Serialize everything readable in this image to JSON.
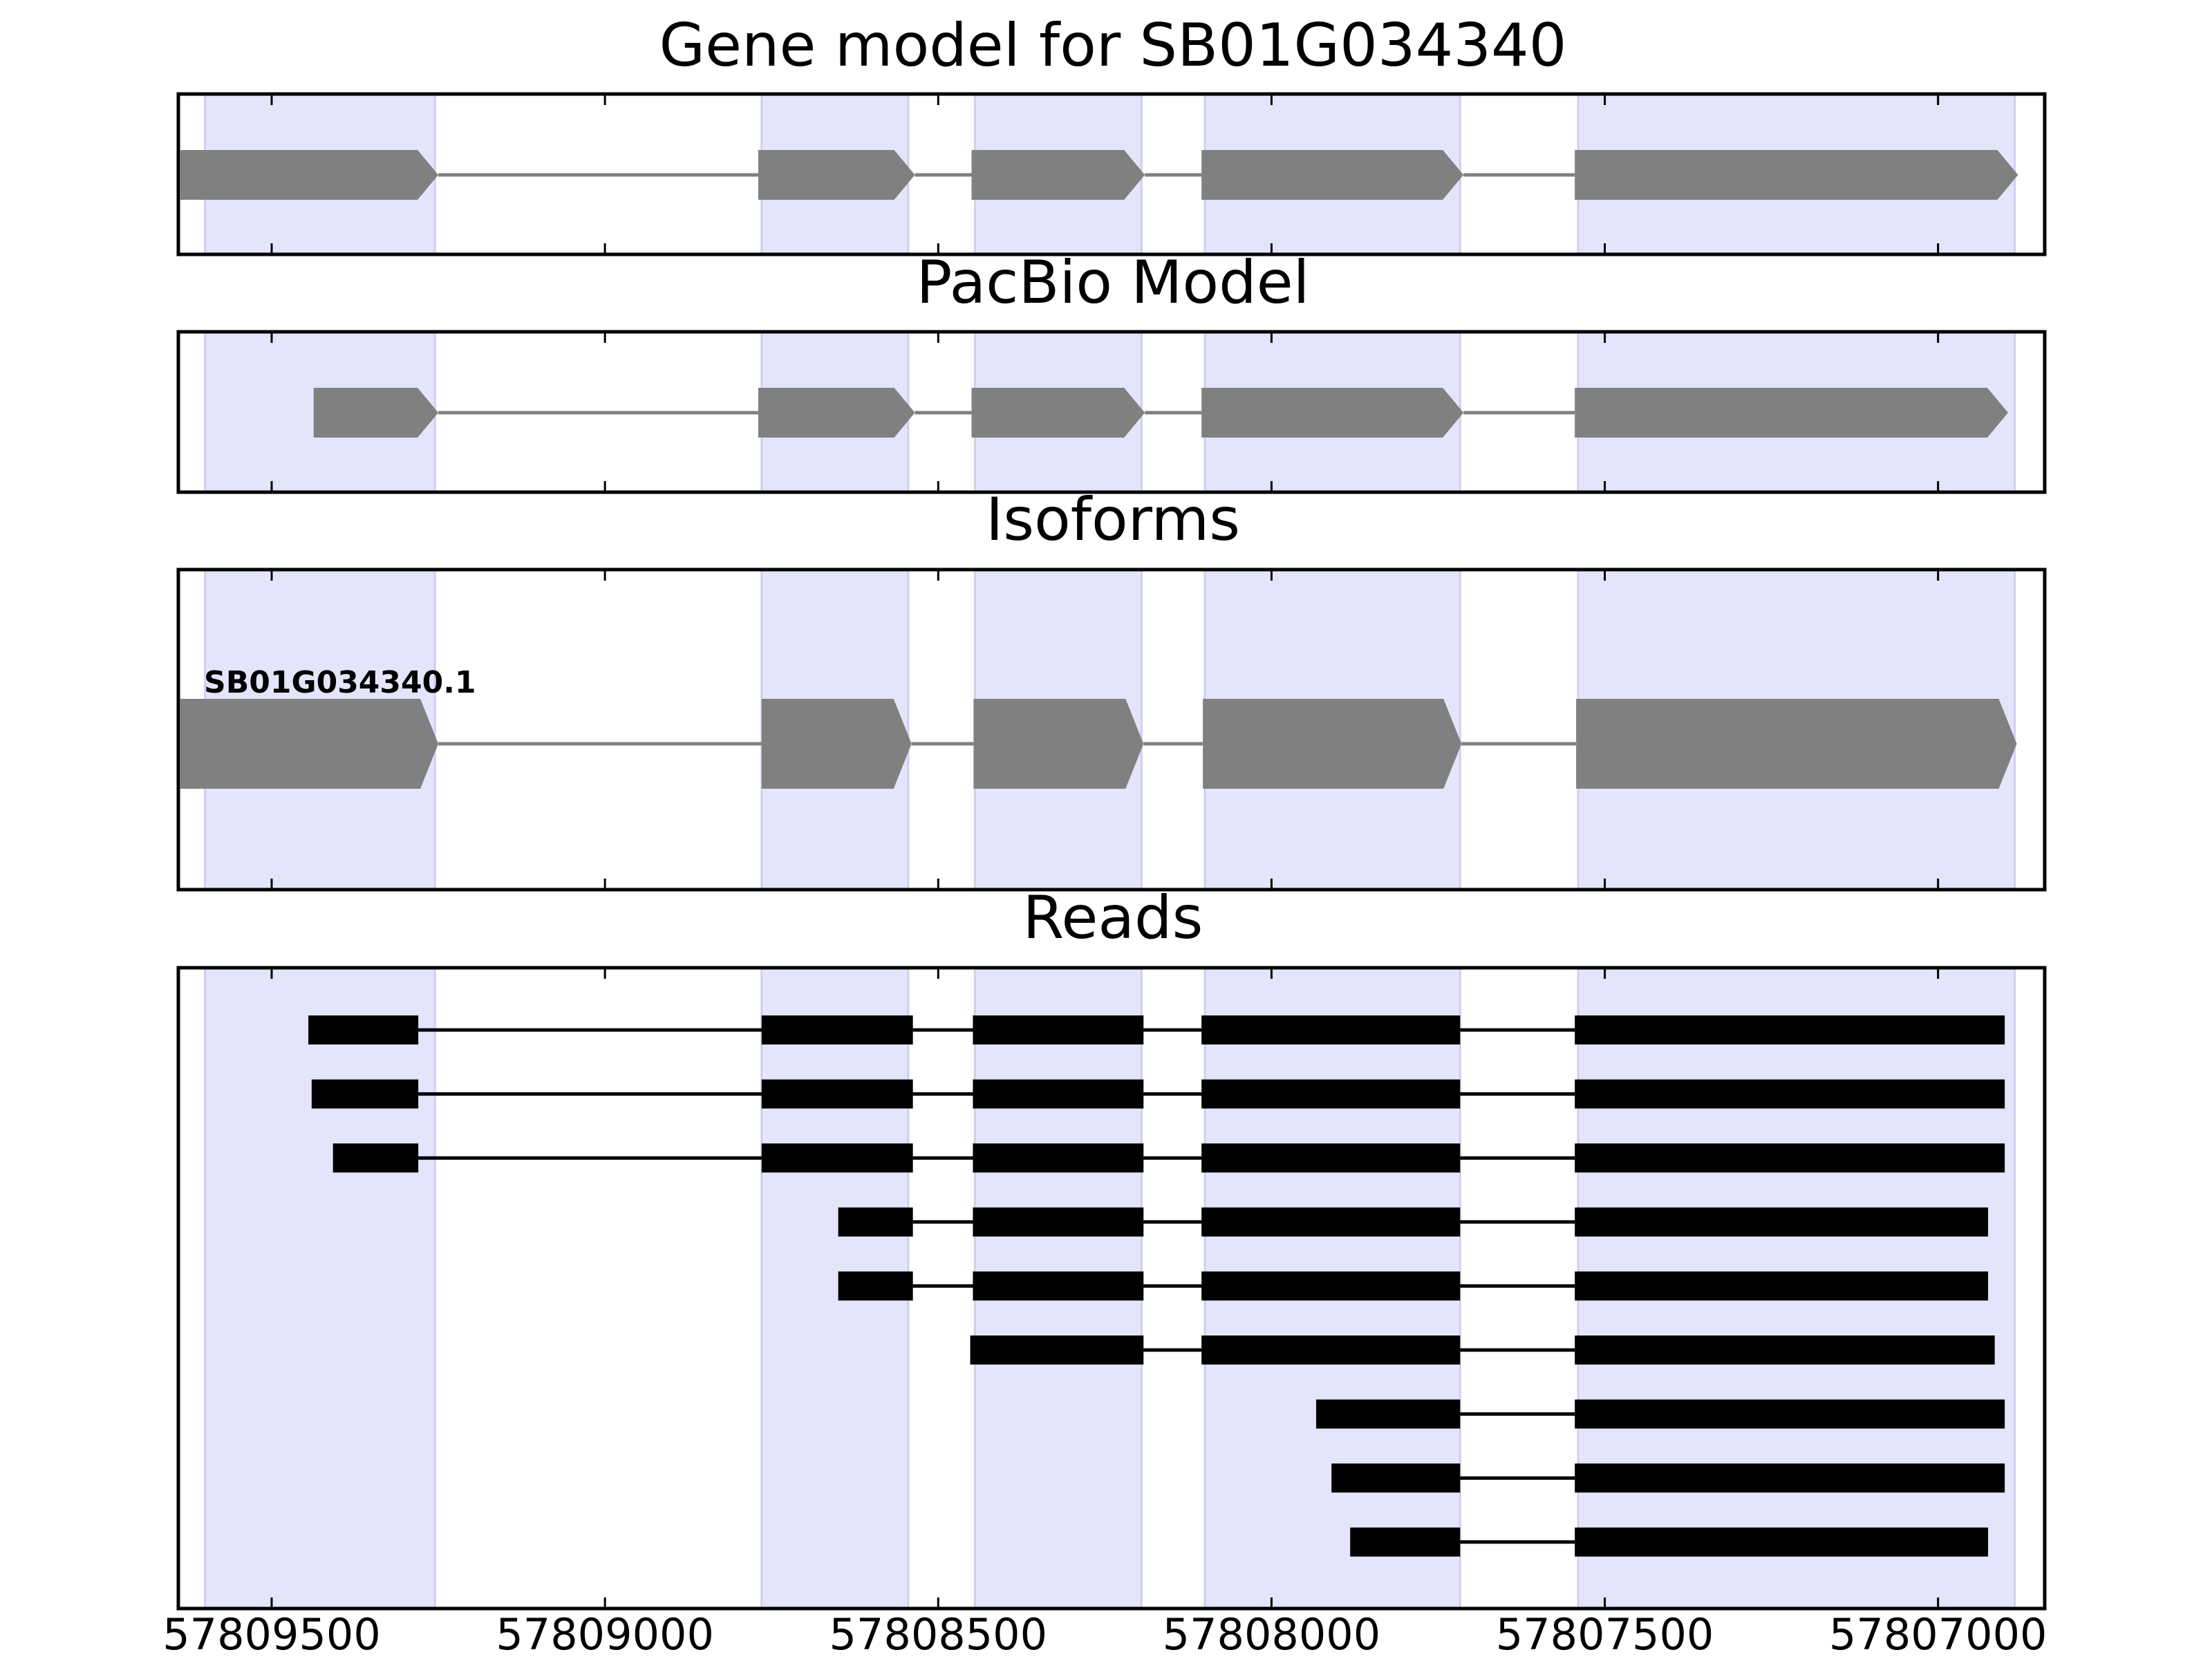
{
  "chart_data": {
    "type": "gene-structure",
    "direction": "reverse-strand",
    "x_axis": {
      "reversed": true,
      "xlim": [
        57809640,
        57806840
      ],
      "ticks": [
        57809500,
        57809000,
        57808500,
        57808000,
        57807500,
        57807000
      ],
      "tick_labels": [
        "57809500",
        "57809000",
        "57808500",
        "57808000",
        "57807500",
        "57807000"
      ]
    },
    "shaded_exon_regions": [
      [
        57809600,
        57809255
      ],
      [
        57808765,
        57808545
      ],
      [
        57808445,
        57808195
      ],
      [
        57808100,
        57807717
      ],
      [
        57807540,
        57806885
      ]
    ],
    "panels": [
      {
        "title": "Gene model for SB01G034340",
        "features": [
          {
            "label": "",
            "exons": [
              [
                57809637,
                57809250
              ],
              [
                57808770,
                57808535
              ],
              [
                57808450,
                57808190
              ],
              [
                57808105,
                57807712
              ],
              [
                57807545,
                57806880
              ]
            ]
          }
        ]
      },
      {
        "title": "PacBio Model",
        "features": [
          {
            "label": "",
            "exons": [
              [
                57809437,
                57809250
              ],
              [
                57808770,
                57808535
              ],
              [
                57808450,
                57808190
              ],
              [
                57808105,
                57807712
              ],
              [
                57807545,
                57806895
              ]
            ]
          }
        ]
      },
      {
        "title": "Isoforms",
        "features": [
          {
            "label": "SB01G034340.1",
            "exons": [
              [
                57809637,
                57809250
              ],
              [
                57808765,
                57808540
              ],
              [
                57808447,
                57808192
              ],
              [
                57808103,
                57807715
              ],
              [
                57807543,
                57806882
              ]
            ]
          }
        ]
      },
      {
        "title": "Reads",
        "reads": [
          [
            [
              57809445,
              57809280
            ],
            [
              57808765,
              57808538
            ],
            [
              57808448,
              57808192
            ],
            [
              57808105,
              57807717
            ],
            [
              57807545,
              57806900
            ]
          ],
          [
            [
              57809440,
              57809280
            ],
            [
              57808765,
              57808538
            ],
            [
              57808448,
              57808192
            ],
            [
              57808105,
              57807717
            ],
            [
              57807545,
              57806900
            ]
          ],
          [
            [
              57809408,
              57809280
            ],
            [
              57808765,
              57808538
            ],
            [
              57808448,
              57808192
            ],
            [
              57808105,
              57807717
            ],
            [
              57807545,
              57806900
            ]
          ],
          [
            [
              57808650,
              57808538
            ],
            [
              57808448,
              57808192
            ],
            [
              57808105,
              57807717
            ],
            [
              57807545,
              57806925
            ]
          ],
          [
            [
              57808650,
              57808538
            ],
            [
              57808448,
              57808192
            ],
            [
              57808105,
              57807717
            ],
            [
              57807545,
              57806925
            ]
          ],
          [
            [
              57808452,
              57808192
            ],
            [
              57808105,
              57807717
            ],
            [
              57807545,
              57806915
            ]
          ],
          [
            [
              57807933,
              57807717
            ],
            [
              57807545,
              57806900
            ]
          ],
          [
            [
              57807910,
              57807717
            ],
            [
              57807545,
              57806900
            ]
          ],
          [
            [
              57807882,
              57807717
            ],
            [
              57807545,
              57806925
            ]
          ]
        ]
      }
    ],
    "colors": {
      "shade": "#e4e4fb",
      "shade_edge": "#cfcff2",
      "model_exon": "#808080",
      "model_intron": "#808080",
      "read": "#000000",
      "frame": "#000000"
    }
  }
}
